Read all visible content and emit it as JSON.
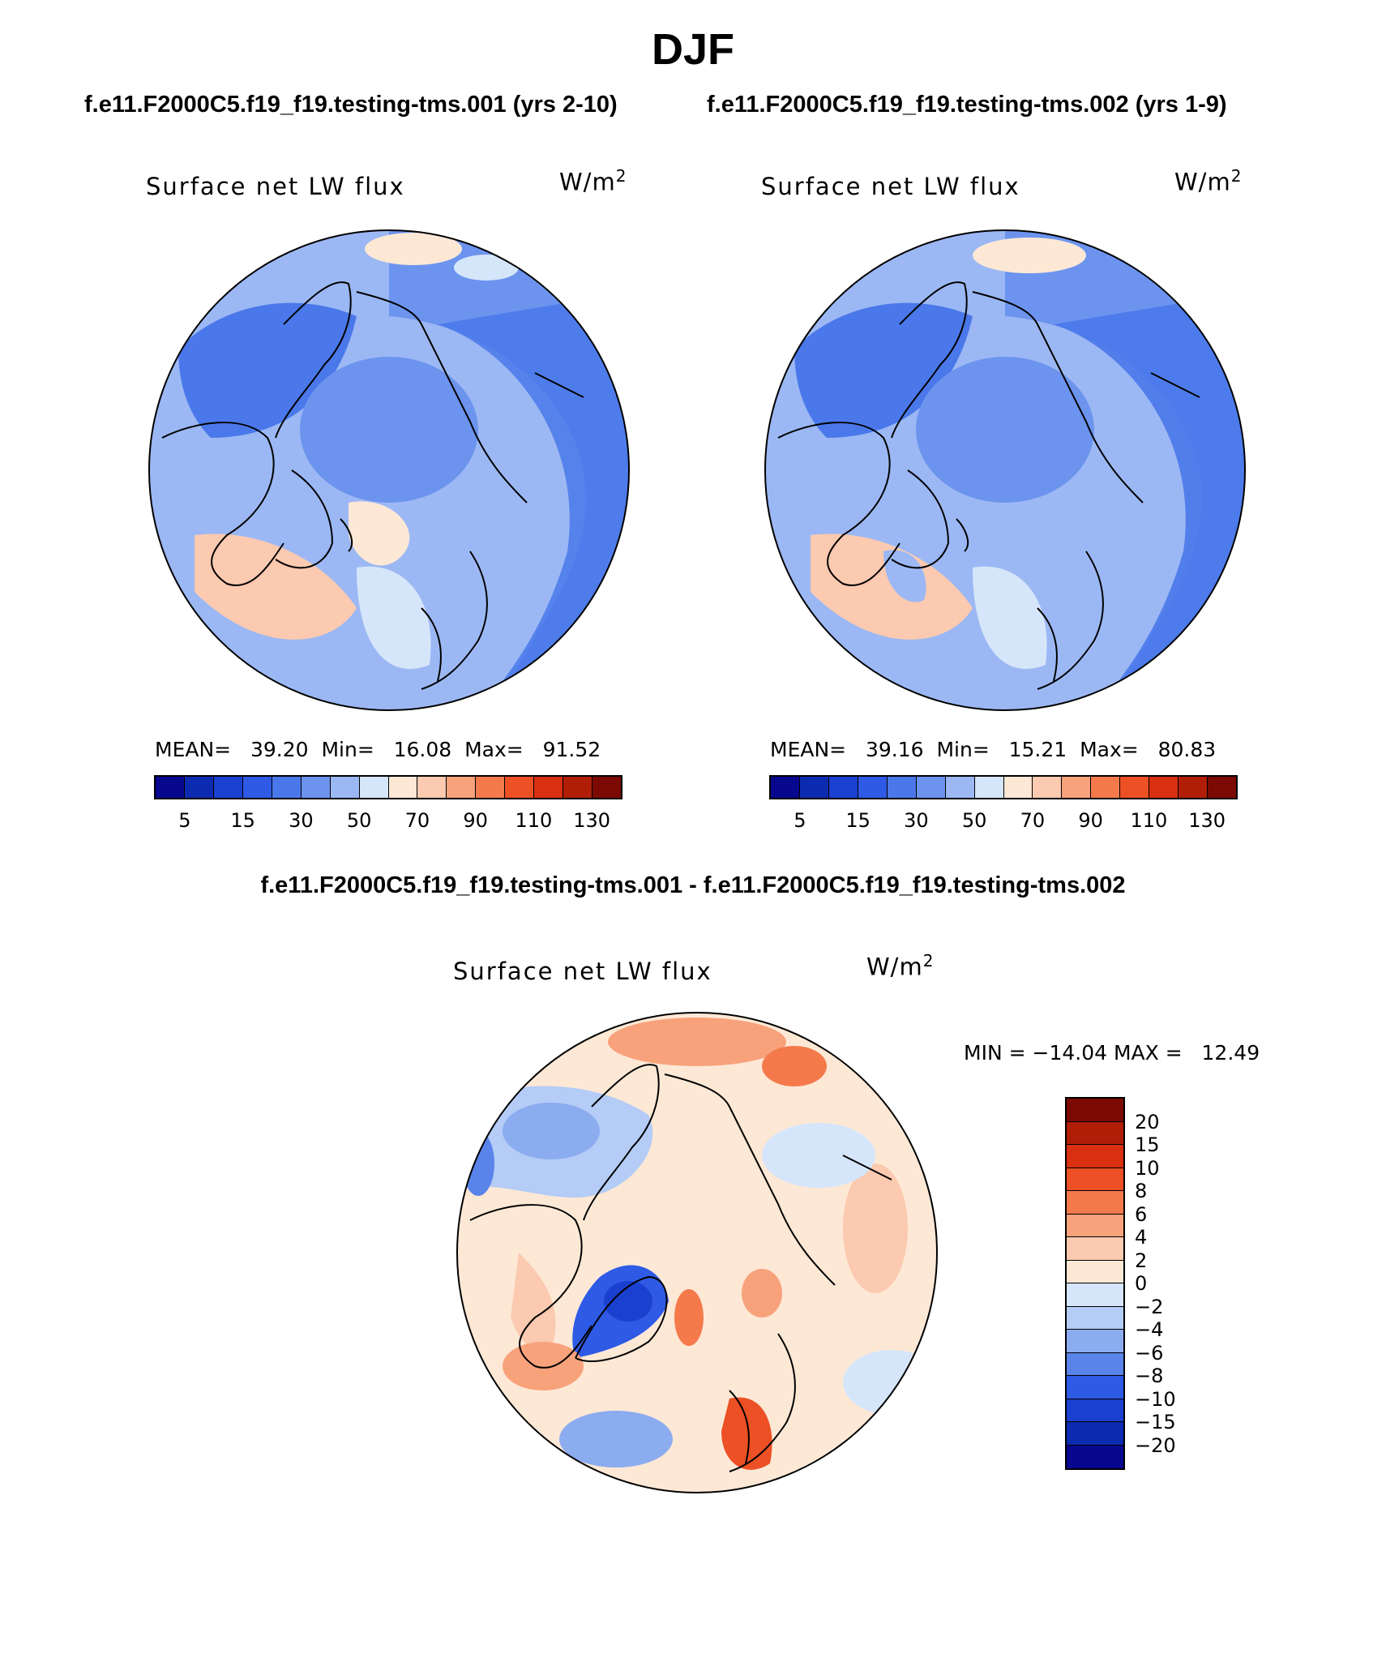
{
  "page_title": "DJF",
  "case_title_1": "f.e11.F2000C5.f19_f19.testing-tms.001 (yrs 2-10)",
  "case_title_2": "f.e11.F2000C5.f19_f19.testing-tms.002 (yrs 1-9)",
  "diff_title": "f.e11.F2000C5.f19_f19.testing-tms.001 - f.e11.F2000C5.f19_f19.testing-tms.002",
  "panels": [
    {
      "variable": "Surface net LW flux",
      "units_base": "W/m",
      "units_exp": "2",
      "mean_label": "MEAN=",
      "mean": "39.20",
      "min_label": "Min=",
      "min": "16.08",
      "max_label": "Max=",
      "max": "91.52"
    },
    {
      "variable": "Surface net LW flux",
      "units_base": "W/m",
      "units_exp": "2",
      "mean_label": "MEAN=",
      "mean": "39.16",
      "min_label": "Min=",
      "min": "15.21",
      "max_label": "Max=",
      "max": "80.83"
    },
    {
      "variable": "Surface net LW flux",
      "units_base": "W/m",
      "units_exp": "2",
      "min_label": "MIN =",
      "min": "−14.04",
      "max_label": "MAX =",
      "max": "12.49"
    }
  ],
  "colorbar_main": {
    "colors": [
      "#08088e",
      "#0c2bb0",
      "#1a40d0",
      "#2e5ae6",
      "#4a78ea",
      "#6c94ee",
      "#9cb8f4",
      "#d6e6fa",
      "#fde8d6",
      "#fbcab0",
      "#f8a27c",
      "#f47a4c",
      "#ec5024",
      "#d83010",
      "#b01e08",
      "#7c0a04"
    ],
    "labels": [
      "5",
      "15",
      "30",
      "50",
      "70",
      "90",
      "110",
      "130"
    ]
  },
  "colorbar_diff": {
    "colors": [
      "#7c0a04",
      "#b01e08",
      "#d83010",
      "#ec5024",
      "#f47a4c",
      "#f8a27c",
      "#fbcab0",
      "#fde8d6",
      "#d6e6fa",
      "#b4ccf6",
      "#8cacf0",
      "#5a84ea",
      "#2e5ae6",
      "#1a40d0",
      "#0c2bb0",
      "#08088e"
    ],
    "labels": [
      "20",
      "15",
      "10",
      "8",
      "6",
      "4",
      "2",
      "0",
      "−2",
      "−4",
      "−6",
      "−8",
      "−10",
      "−15",
      "−20"
    ]
  }
}
